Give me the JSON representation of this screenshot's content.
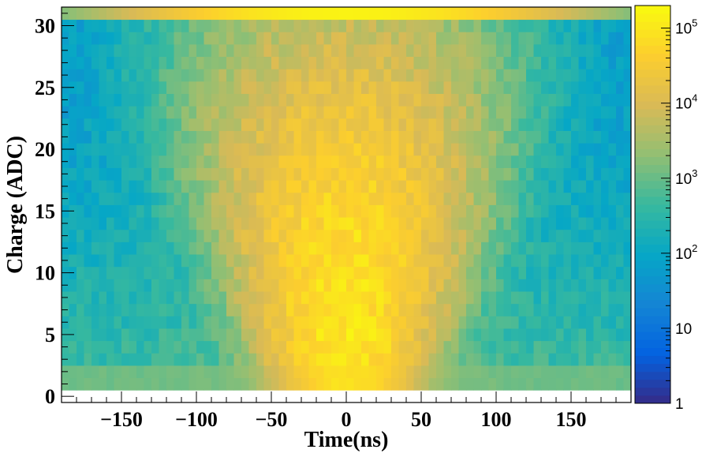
{
  "chart_data": {
    "type": "heatmap",
    "xlabel": "Time(ns)",
    "ylabel": "Charge (ADC)",
    "xlim": [
      -190,
      190
    ],
    "ylim": [
      -0.5,
      31.5
    ],
    "x_bin_width": 5,
    "y_bin_width": 1,
    "x_ticks": [
      -150,
      -100,
      -50,
      0,
      50,
      100,
      150
    ],
    "x_tick_labels": [
      "−150",
      "−100",
      "−50",
      "0",
      "50",
      "100",
      "150"
    ],
    "y_ticks": [
      0,
      5,
      10,
      15,
      20,
      25,
      30
    ],
    "y_tick_labels": [
      "0",
      "5",
      "10",
      "15",
      "20",
      "25",
      "30"
    ],
    "z_scale": "log",
    "zlim": [
      1,
      200000
    ],
    "colorbar_ticks": [
      {
        "value": 1,
        "base": "1",
        "exp": ""
      },
      {
        "value": 10,
        "base": "10",
        "exp": ""
      },
      {
        "value": 100,
        "base": "10",
        "exp": "2"
      },
      {
        "value": 1000,
        "base": "10",
        "exp": "3"
      },
      {
        "value": 10000,
        "base": "10",
        "exp": "4"
      },
      {
        "value": 100000,
        "base": "10",
        "exp": "5"
      }
    ],
    "model": {
      "description": "bin counts read from color; peak near t=0, low charge",
      "peak_count": 100000,
      "overflow_row_charge": 31,
      "overflow_row_count_center": 150000,
      "row0_count": 0,
      "row1_2_count_edges": 1000,
      "background_count_low_charge": 400,
      "background_count_high_charge": 90
    },
    "palette": [
      "#352a87",
      "#0363e1",
      "#1485d4",
      "#06a7c6",
      "#38b99e",
      "#92bf73",
      "#d9ba56",
      "#fcce2e",
      "#f9fb0e"
    ]
  }
}
